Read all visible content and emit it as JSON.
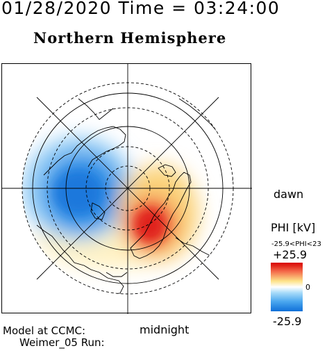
{
  "header": {
    "date_time": "01/28/2020 Time = 03:24:00",
    "hemisphere": "Northern Hemisphere"
  },
  "map": {
    "projection": "polar (north pole at center)",
    "local_time_labels": {
      "dawn": "dawn",
      "midnight": "midnight"
    },
    "features": [
      "coastlines",
      "latitude circles",
      "meridian grid",
      "potential contours"
    ],
    "potential_pattern": {
      "negative_cell": "dusk/upper-left, blue",
      "positive_cell": "dawn/lower-right, red",
      "colors": {
        "positive": "#d80000",
        "zero": "#ffffff",
        "negative": "#0f6fd8"
      }
    }
  },
  "colorbar": {
    "title": "PHI [kV]",
    "range_text": "-25.9<PHI<23",
    "max_label": "+25.9",
    "zero_label": "0",
    "min_label": "-25.9",
    "max_value": 25.9,
    "min_value": -25.9
  },
  "footer": {
    "model_line": "Model at CCMC:",
    "run_line": "Weimer_05 Run:"
  }
}
